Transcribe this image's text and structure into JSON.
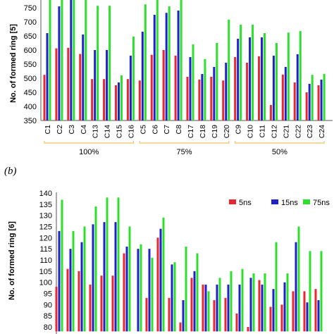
{
  "panel_label": "(b)",
  "colors": {
    "5ns": "#e8282e",
    "15ns": "#1f22c8",
    "75ns": "#2de02d",
    "group_bracket": "#f0c060"
  },
  "chart_data": [
    {
      "type": "bar",
      "ylabel": "No. of formed ring [5]",
      "xlabel": "",
      "ylim": [
        350,
        780
      ],
      "yticks": [
        350,
        400,
        450,
        500,
        550,
        600,
        650,
        700,
        750
      ],
      "grid": false,
      "categories": [
        "C1",
        "C2",
        "C3",
        "C4",
        "C13",
        "C14",
        "C15",
        "C16",
        "C5",
        "C6",
        "C7",
        "C8",
        "C17",
        "C18",
        "C19",
        "C20",
        "C9",
        "C10",
        "C11",
        "C12",
        "C21",
        "C22",
        "C23",
        "C24"
      ],
      "groups": [
        {
          "label": "100%",
          "from": 0,
          "to": 7
        },
        {
          "label": "75%",
          "from": 8,
          "to": 15
        },
        {
          "label": "50%",
          "from": 16,
          "to": 23
        }
      ],
      "series": [
        {
          "name": "5ns",
          "values": [
            512,
            606,
            608,
            586,
            497,
            497,
            475,
            497,
            492,
            583,
            600,
            580,
            505,
            495,
            505,
            492,
            575,
            555,
            578,
            405,
            513,
            485,
            450,
            475
          ]
        },
        {
          "name": "15ns",
          "values": [
            660,
            755,
            790,
            655,
            600,
            600,
            485,
            580,
            665,
            725,
            732,
            740,
            575,
            515,
            540,
            555,
            640,
            645,
            645,
            580,
            540,
            585,
            480,
            495
          ]
        },
        {
          "name": "75ns",
          "values": [
            790,
            780,
            790,
            790,
            757,
            757,
            510,
            648,
            762,
            778,
            755,
            780,
            620,
            568,
            625,
            708,
            690,
            690,
            660,
            625,
            662,
            667,
            512,
            515
          ]
        }
      ]
    },
    {
      "type": "bar",
      "ylabel": "No. of formed ring [6]",
      "xlabel": "",
      "ylim": [
        78,
        140
      ],
      "yticks": [
        80,
        85,
        90,
        95,
        100,
        105,
        110,
        115,
        120,
        125,
        130,
        135,
        140
      ],
      "grid": false,
      "legend_position": "top-right",
      "categories": [
        "C1",
        "C2",
        "C3",
        "C4",
        "C13",
        "C14",
        "C15",
        "C16",
        "C5",
        "C6",
        "C7",
        "C8",
        "C17",
        "C18",
        "C19",
        "C20",
        "C9",
        "C10",
        "C11",
        "C12",
        "C21",
        "C22",
        "C23",
        "C24"
      ],
      "series": [
        {
          "name": "5ns",
          "values": [
            98,
            106,
            105,
            99,
            103,
            103,
            113,
            78,
            93,
            120,
            93,
            82,
            102,
            99,
            92,
            93,
            86,
            80,
            101,
            89,
            90,
            96,
            96,
            97
          ]
        },
        {
          "name": "15ns",
          "values": [
            123,
            115,
            118,
            126,
            127,
            127,
            116,
            115,
            115,
            124,
            108,
            92,
            105,
            99,
            99,
            99,
            99,
            102,
            99,
            97,
            100,
            118,
            91,
            92
          ]
        },
        {
          "name": "75ns",
          "values": [
            137,
            123,
            125,
            134,
            138,
            138,
            125,
            117,
            111,
            129,
            109,
            116,
            113,
            96,
            102,
            105,
            106,
            104,
            104,
            118,
            104,
            125,
            114,
            114
          ]
        }
      ]
    }
  ]
}
